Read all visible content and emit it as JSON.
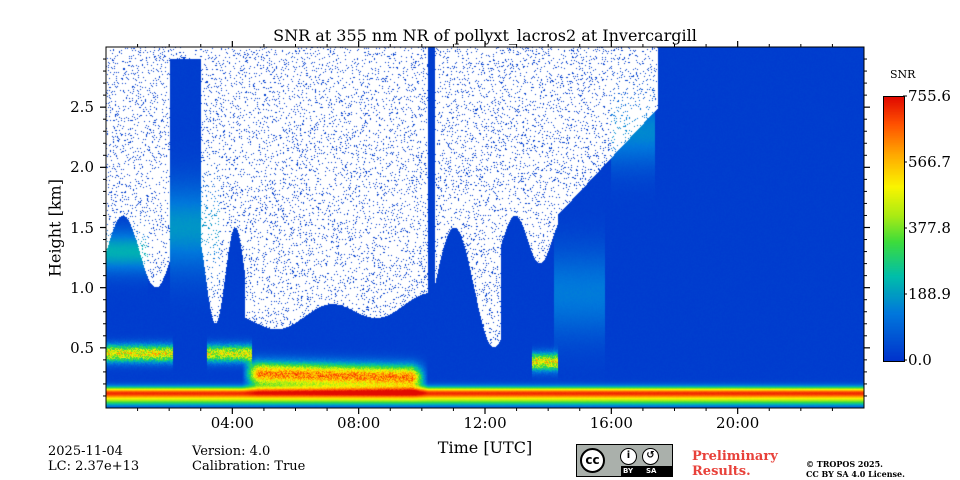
{
  "chart_data": {
    "type": "heatmap",
    "title": "SNR at 355 nm NR of pollyxt_lacros2 at Invercargill",
    "xlabel": "Time [UTC]",
    "ylabel": "Height [km]",
    "x_range_hours": [
      0,
      24
    ],
    "ylim": [
      0,
      3.0
    ],
    "x_ticks": [
      {
        "value": 4,
        "label": "04:00"
      },
      {
        "value": 8,
        "label": "08:00"
      },
      {
        "value": 12,
        "label": "12:00"
      },
      {
        "value": 16,
        "label": "16:00"
      },
      {
        "value": 20,
        "label": "20:00"
      }
    ],
    "y_ticks": [
      {
        "value": 0.5,
        "label": "0.5"
      },
      {
        "value": 1.0,
        "label": "1.0"
      },
      {
        "value": 1.5,
        "label": "1.5"
      },
      {
        "value": 2.0,
        "label": "2.0"
      },
      {
        "value": 2.5,
        "label": "2.5"
      }
    ],
    "colorbar": {
      "label": "SNR",
      "range": [
        0.0,
        755.6
      ],
      "ticks": [
        {
          "value": 0.0,
          "label": "0.0"
        },
        {
          "value": 188.9,
          "label": "188.9"
        },
        {
          "value": 377.8,
          "label": "377.8"
        },
        {
          "value": 566.7,
          "label": "566.7"
        },
        {
          "value": 755.6,
          "label": "755.6"
        }
      ]
    },
    "features": {
      "surface_layer_height_km": 0.12,
      "surface_layer_snr_peak": 680,
      "aerosol_layer_0_1": {
        "t_start": 4.6,
        "t_end": 9.9,
        "height_km": 0.28,
        "snr": 640
      },
      "cloud_layers": [
        {
          "t_start": 0.0,
          "t_end": 2.1,
          "height_km": 0.45,
          "snr": 560
        },
        {
          "t_start": 3.2,
          "t_end": 4.6,
          "height_km": 0.45,
          "snr": 520
        },
        {
          "t_start": 13.5,
          "t_end": 14.3,
          "height_km": 0.38,
          "snr": 560
        }
      ],
      "background_snr": 15,
      "noise_region_above_km": 1.0
    }
  },
  "footer": {
    "date": "2025-11-04",
    "lc": "LC: 2.37e+13",
    "version": "Version: 4.0",
    "calibration": "Calibration: True",
    "preliminary_line1": "Preliminary",
    "preliminary_line2": "Results.",
    "copyright_line1": "© TROPOS 2025.",
    "copyright_line2": "CC BY SA 4.0 License.",
    "cc_by": "BY",
    "cc_sa": "SA"
  }
}
